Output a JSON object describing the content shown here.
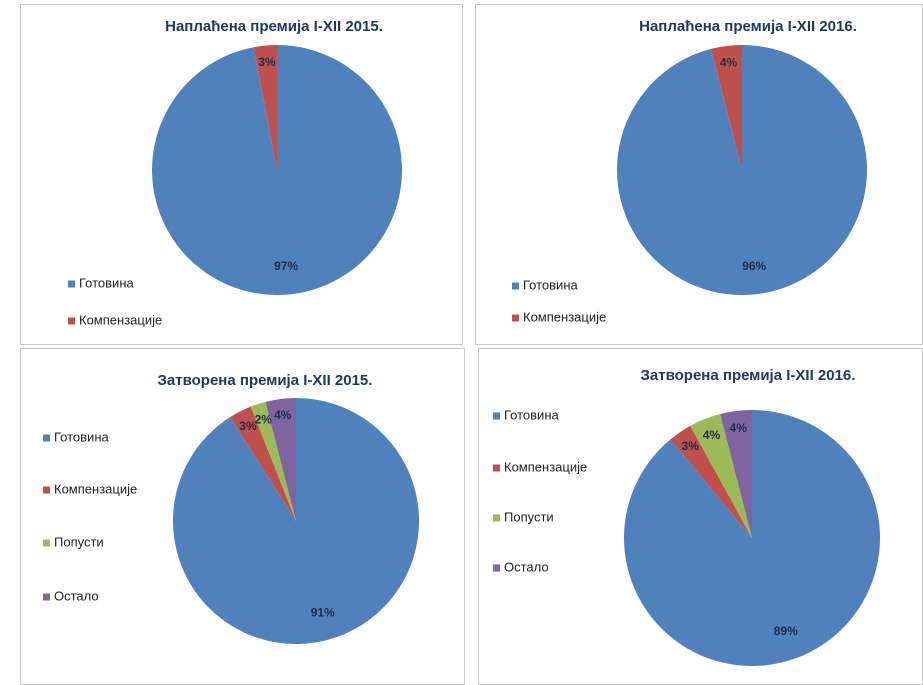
{
  "chart_data": [
    {
      "type": "pie",
      "title": "Наплаћена премија I-XII  2015.",
      "categories": [
        "Готовина",
        "Компензације"
      ],
      "values": [
        97,
        3
      ],
      "value_labels": [
        "97%",
        "3%"
      ],
      "colors": [
        "#4f81bd",
        "#c0504d"
      ]
    },
    {
      "type": "pie",
      "title": "Наплаћена премија I-XII  2016.",
      "categories": [
        "Готовина",
        "Компензације"
      ],
      "values": [
        96,
        4
      ],
      "value_labels": [
        "96%",
        "4%"
      ],
      "colors": [
        "#4f81bd",
        "#c0504d"
      ]
    },
    {
      "type": "pie",
      "title": "Затворена премија I-XII  2015.",
      "categories": [
        "Готовина",
        "Компензације",
        "Попусти",
        "Остало"
      ],
      "values": [
        91,
        3,
        2,
        4
      ],
      "value_labels": [
        "91%",
        "3%",
        "2%",
        "4%"
      ],
      "colors": [
        "#4f81bd",
        "#c0504d",
        "#9bbb59",
        "#8064a2"
      ]
    },
    {
      "type": "pie",
      "title": "Затворена премија I-XII  2016.",
      "categories": [
        "Готовина",
        "Компензације",
        "Попусти",
        "Остало"
      ],
      "values": [
        89,
        3,
        4,
        4
      ],
      "value_labels": [
        "89%",
        "3%",
        "4%",
        "4%"
      ],
      "colors": [
        "#4f81bd",
        "#c0504d",
        "#9bbb59",
        "#8064a2"
      ]
    }
  ]
}
